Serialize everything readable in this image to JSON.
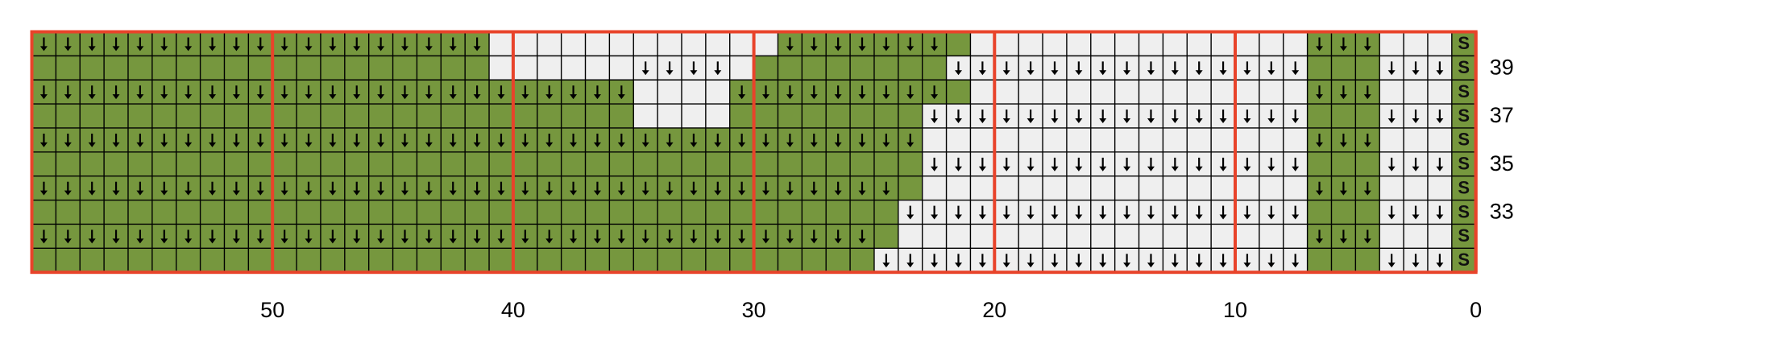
{
  "chart": {
    "edge_label": "S",
    "col_labels": [
      50,
      40,
      30,
      20,
      10,
      0
    ],
    "rows": [
      {
        "label": null,
        "cells": "AAAAAAAAAAAAAAAAAAAWWWWWWWWWWWWAAAAAAAGWWWWWWWWWWWWWWAAAWWWS"
      },
      {
        "label": "39",
        "cells": "GGGGGGGGGGGGGGGGGGGWWWWWWwwwwWGGGGGGGGwwwwwwwwwwwwwwwGGGwwwS"
      },
      {
        "label": null,
        "cells": "AAAAAAAAAAAAAAAAAAAAAAAAAWWWWAAAAAAAAAGWWWWWWWWWWWWWWAAAWWWS"
      },
      {
        "label": "37",
        "cells": "GGGGGGGGGGGGGGGGGGGGGGGGGWWWWGGGGGGGGwwwwwwwwwwwwwwwwGGGwwwS"
      },
      {
        "label": null,
        "cells": "AAAAAAAAAAAAAAAAAAAAAAAAAAAAAAAAAAAAAWWWWWWWWWWWWWWWWAAAWWWS"
      },
      {
        "label": "35",
        "cells": "GGGGGGGGGGGGGGGGGGGGGGGGGGGGGGGGGGGGGwwwwwwwwwwwwwwwwGGGwwwS"
      },
      {
        "label": null,
        "cells": "AAAAAAAAAAAAAAAAAAAAAAAAAAAAAAAAAAAAGWWWWWWWWWWWWWWWWAAAWWWS"
      },
      {
        "label": "33",
        "cells": "GGGGGGGGGGGGGGGGGGGGGGGGGGGGGGGGGGGGwwwwwwwwwwwwwwwwwGGGwwwS"
      },
      {
        "label": null,
        "cells": "AAAAAAAAAAAAAAAAAAAAAAAAAAAAAAAAAAAGWWWWWWWWWWWWWWWWWAAAWWWS"
      },
      {
        "label": null,
        "cells": "GGGGGGGGGGGGGGGGGGGGGGGGGGGGGGGGGGGwwwwwwwwwwwwwwwwwwGGGwwwS"
      }
    ]
  }
}
